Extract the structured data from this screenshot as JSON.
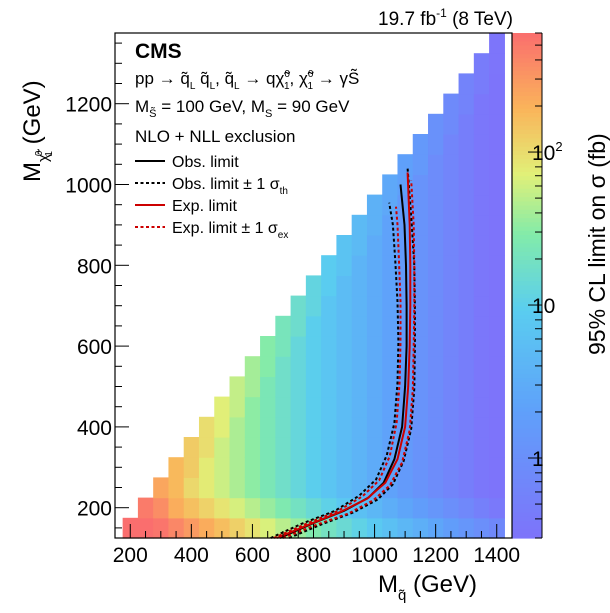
{
  "chart_data": {
    "type": "heatmap",
    "title": "19.7 fb⁻¹ (8 TeV)",
    "experiment_label": "CMS",
    "xlabel": "M_q̃ (GeV)",
    "ylabel": "M_χ̃⁰₁ (GeV)",
    "zlabel": "95% CL limit on σ (fb)",
    "xlim": [
      150,
      1450
    ],
    "ylim": [
      125,
      1375
    ],
    "zlim": [
      0.3,
      600
    ],
    "z_scale": "log",
    "x_ticks": [
      200,
      400,
      600,
      800,
      1000,
      1200,
      1400
    ],
    "y_ticks": [
      200,
      400,
      600,
      800,
      1000,
      1200
    ],
    "z_ticks": [
      {
        "value": 1,
        "label": "1"
      },
      {
        "value": 10,
        "label": "10"
      },
      {
        "value": 100,
        "label": "10²"
      }
    ],
    "grid": false,
    "process_text": "pp → q̃L q̃L, q̃L → qχ̃⁰₁, χ̃⁰₁ → γS̃",
    "mass_text": "M_S̃ = 100 GeV, M_S = 90 GeV",
    "exclusion_text": "NLO + NLL exclusion",
    "legend": [
      {
        "label": "Obs. limit",
        "color": "#000000",
        "style": "solid"
      },
      {
        "label": "Obs. limit ± 1 σth",
        "color": "#000000",
        "style": "dashed"
      },
      {
        "label": "Exp. limit",
        "color": "#cc0000",
        "style": "solid"
      },
      {
        "label": "Exp. limit ± 1 σex",
        "color": "#cc0000",
        "style": "dashed"
      }
    ],
    "grid_cells": {
      "x_bin_width": 50,
      "y_bin_width": 50,
      "x_centers_start": 200,
      "y_centers_start": 150,
      "description": "upper-left triangle region where M_chi < M_squark"
    },
    "series": [
      {
        "name": "Obs. limit",
        "color": "#000000",
        "dash": false,
        "x": [
          690,
          800,
          900,
          980,
          1030,
          1065,
          1090,
          1100,
          1105,
          1105,
          1103,
          1098,
          1085
        ],
        "y": [
          125,
          162,
          192,
          225,
          262,
          320,
          400,
          500,
          600,
          700,
          800,
          900,
          1000
        ]
      },
      {
        "name": "Obs. limit ± 1 σth",
        "color": "#000000",
        "dash": true,
        "x": [
          660,
          760,
          870,
          950,
          1005,
          1040,
          1065,
          1075,
          1078,
          1075,
          1068,
          1060,
          1048
        ],
        "y": [
          125,
          160,
          192,
          230,
          270,
          330,
          410,
          510,
          610,
          710,
          810,
          900,
          955
        ]
      },
      {
        "name": "Obs. limit ± 1 σth",
        "color": "#000000",
        "dash": true,
        "x": [
          720,
          830,
          930,
          1010,
          1060,
          1095,
          1120,
          1130,
          1132,
          1132,
          1130,
          1122,
          1108
        ],
        "y": [
          125,
          160,
          188,
          220,
          258,
          315,
          395,
          495,
          600,
          700,
          800,
          900,
          1040
        ]
      },
      {
        "name": "Exp. limit",
        "color": "#cc0000",
        "dash": false,
        "x": [
          680,
          790,
          890,
          975,
          1035,
          1075,
          1100,
          1110,
          1115,
          1117,
          1117,
          1115,
          1108
        ],
        "y": [
          125,
          160,
          190,
          222,
          262,
          320,
          400,
          500,
          600,
          700,
          800,
          900,
          1030
        ]
      },
      {
        "name": "Exp. limit ± 1 σex",
        "color": "#cc0000",
        "dash": true,
        "x": [
          670,
          775,
          880,
          960,
          1015,
          1050,
          1072,
          1082,
          1085,
          1085,
          1080,
          1075,
          1070
        ],
        "y": [
          125,
          160,
          192,
          228,
          268,
          328,
          410,
          510,
          610,
          710,
          810,
          900,
          945
        ]
      },
      {
        "name": "Exp. limit ± 1 σex",
        "color": "#cc0000",
        "dash": true,
        "x": [
          700,
          810,
          915,
          995,
          1050,
          1090,
          1115,
          1125,
          1128,
          1130,
          1130,
          1128,
          1120
        ],
        "y": [
          125,
          158,
          186,
          218,
          255,
          312,
          392,
          492,
          595,
          700,
          800,
          900,
          1010
        ]
      }
    ]
  }
}
